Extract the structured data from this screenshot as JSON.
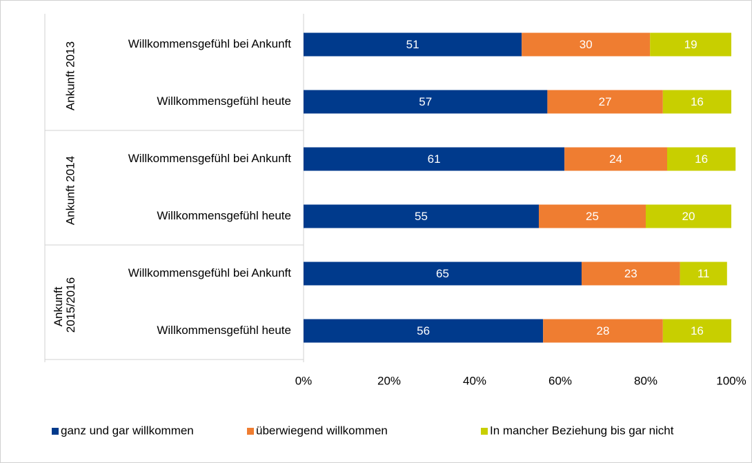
{
  "chart_data": {
    "type": "stacked-barh",
    "groups": [
      "Ankunft 2013",
      "Ankunft 2014",
      "Ankunft 2015/2016"
    ],
    "categories": [
      "Willkommensgefühl bei Ankunft",
      "Willkommensgefühl heute",
      "Willkommensgefühl bei Ankunft",
      "Willkommensgefühl heute",
      "Willkommensgefühl bei Ankunft",
      "Willkommensgefühl heute"
    ],
    "series": [
      {
        "name": "ganz und gar willkommen",
        "color": "#003a8c",
        "values": [
          51,
          57,
          61,
          55,
          65,
          56
        ]
      },
      {
        "name": "überwiegend willkommen",
        "color": "#ef7d31",
        "values": [
          30,
          27,
          24,
          25,
          23,
          28
        ]
      },
      {
        "name": "In mancher Beziehung bis gar nicht",
        "color": "#c8cf00",
        "values": [
          19,
          16,
          16,
          20,
          11,
          16
        ]
      }
    ],
    "xlim": [
      0,
      100
    ],
    "xticks": [
      {
        "value": 0,
        "label": "0%"
      },
      {
        "value": 20,
        "label": "20%"
      },
      {
        "value": 40,
        "label": "40%"
      },
      {
        "value": 60,
        "label": "60%"
      },
      {
        "value": 80,
        "label": "80%"
      },
      {
        "value": 100,
        "label": "100%"
      }
    ],
    "legend": "bottom"
  }
}
